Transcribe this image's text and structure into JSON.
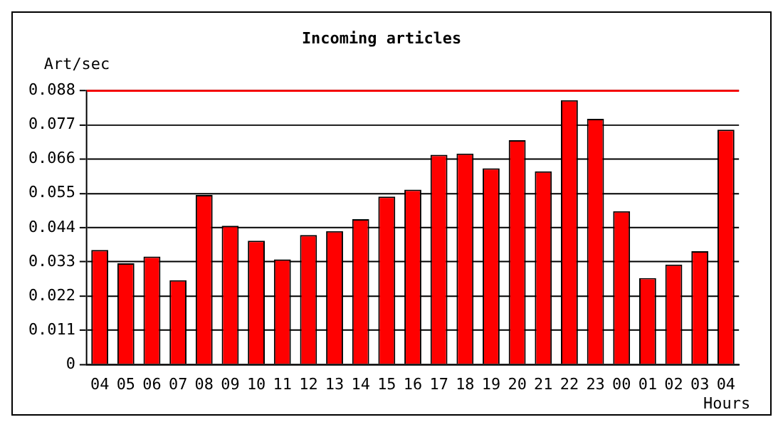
{
  "chart_data": {
    "type": "bar",
    "title": "Incoming articles",
    "ylabel": "Art/sec",
    "xlabel": "Hours",
    "categories": [
      "04",
      "05",
      "06",
      "07",
      "08",
      "09",
      "10",
      "11",
      "12",
      "13",
      "14",
      "15",
      "16",
      "17",
      "18",
      "19",
      "20",
      "21",
      "22",
      "23",
      "00",
      "01",
      "02",
      "03",
      "04"
    ],
    "values": [
      0.0368,
      0.0325,
      0.0347,
      0.0271,
      0.0545,
      0.0446,
      0.0398,
      0.0338,
      0.0416,
      0.0429,
      0.0467,
      0.054,
      0.0562,
      0.0674,
      0.0678,
      0.0631,
      0.0721,
      0.0621,
      0.085,
      0.079,
      0.0493,
      0.0278,
      0.0321,
      0.0364,
      0.0755
    ],
    "color": "#ff0000",
    "ylim": [
      0,
      0.088
    ],
    "yticks": [
      0,
      0.011,
      0.022,
      0.033,
      0.044,
      0.055,
      0.066,
      0.077,
      0.088
    ],
    "grid": "y",
    "legend": false,
    "ref_lines": [
      {
        "axis": "y",
        "value": 0.088,
        "color": "#ff0000"
      }
    ]
  }
}
